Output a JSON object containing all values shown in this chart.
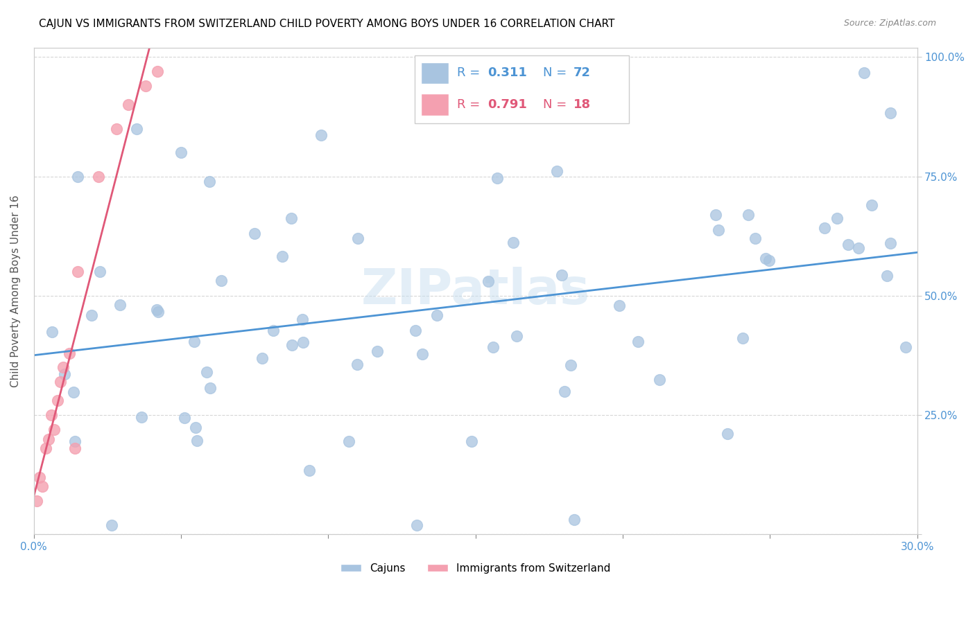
{
  "title": "CAJUN VS IMMIGRANTS FROM SWITZERLAND CHILD POVERTY AMONG BOYS UNDER 16 CORRELATION CHART",
  "source": "Source: ZipAtlas.com",
  "ylabel": "Child Poverty Among Boys Under 16",
  "cajun_color": "#a8c4e0",
  "swiss_color": "#f4a0b0",
  "cajun_line_color": "#4d94d4",
  "swiss_line_color": "#e05878",
  "cajun_R": "0.311",
  "cajun_N": "72",
  "swiss_R": "0.791",
  "swiss_N": "18",
  "watermark_color": "#c8dff0"
}
